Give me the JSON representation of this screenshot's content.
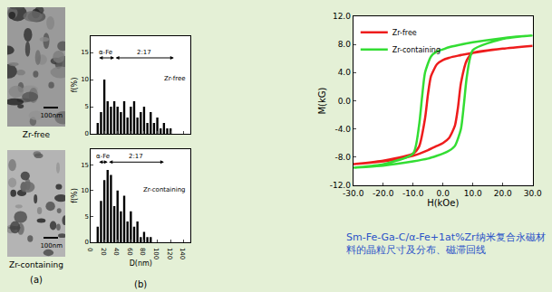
{
  "figure_a": {
    "label": "(a)",
    "images": [
      {
        "label": "Zr-free",
        "scale_bar": "100nm"
      },
      {
        "label": "Zr-containing",
        "scale_bar": "100nm"
      }
    ]
  },
  "chart_data": [
    {
      "type": "bar",
      "label": "Zr-free",
      "color": "#000000",
      "x": [
        10,
        15,
        20,
        25,
        30,
        35,
        40,
        45,
        50,
        55,
        60,
        65,
        70,
        75,
        80,
        85,
        90,
        95,
        100,
        105,
        110,
        115,
        120
      ],
      "values": [
        2,
        4,
        10,
        6,
        5,
        6,
        5,
        4,
        6,
        3,
        5,
        6,
        3,
        4,
        5,
        2,
        4,
        2,
        3,
        1,
        2,
        1,
        1
      ],
      "xlim": [
        0,
        150
      ],
      "xticks": [
        0,
        20,
        40,
        60,
        80,
        100,
        120,
        140
      ],
      "ylim": [
        0,
        18
      ],
      "yticks": [
        0,
        5,
        10,
        15
      ],
      "y_label": "f(%)",
      "tick_labels": "y",
      "grid": false,
      "annotations": [
        {
          "text": "α-Fe",
          "x": [
            10,
            35
          ],
          "y": 14
        },
        {
          "text": "2:17",
          "x": [
            35,
            125
          ],
          "y": 14
        }
      ]
    },
    {
      "type": "bar",
      "label": "Zr-containing",
      "panel_label": "(b)",
      "color": "#000000",
      "x": [
        10,
        15,
        20,
        25,
        30,
        35,
        40,
        45,
        50,
        55,
        60,
        65,
        70,
        75,
        80,
        85,
        90
      ],
      "values": [
        3,
        8,
        12,
        14,
        13,
        7,
        10,
        6,
        9,
        4,
        6,
        3,
        4,
        1,
        2,
        1,
        1
      ],
      "xlim": [
        0,
        150
      ],
      "xticks": [
        0,
        20,
        40,
        60,
        80,
        100,
        120,
        140
      ],
      "ylim": [
        0,
        18
      ],
      "yticks": [
        0,
        5,
        10,
        15
      ],
      "x_label": "D(nm)",
      "y_label": "f(%)",
      "grid": false,
      "annotations": [
        {
          "text": "α-Fe",
          "x": [
            10,
            25
          ],
          "y": 15.5
        },
        {
          "text": "2:17",
          "x": [
            25,
            110
          ],
          "y": 15.5
        }
      ]
    },
    {
      "type": "line",
      "x_label": "H(kOe)",
      "y_label": "M(kG)",
      "legend": "upper left",
      "grid": false,
      "xlim": [
        -30,
        30
      ],
      "xticks": [
        {
          "value": -30,
          "label": "-30.0"
        },
        {
          "value": -20,
          "label": "-20.0"
        },
        {
          "value": -10,
          "label": "-10.0"
        },
        {
          "value": 0,
          "label": "0.0"
        },
        {
          "value": 10,
          "label": "10.0"
        },
        {
          "value": 20,
          "label": "20.0"
        },
        {
          "value": 30,
          "label": "30.0"
        }
      ],
      "ylim": [
        -12,
        12
      ],
      "yticks": [
        {
          "value": -12,
          "label": "-12.0"
        },
        {
          "value": -8,
          "label": "-8.0"
        },
        {
          "value": -4,
          "label": "-4.0"
        },
        {
          "value": 0,
          "label": "0.0"
        },
        {
          "value": 4,
          "label": "4.0"
        },
        {
          "value": 8,
          "label": "8.0"
        },
        {
          "value": 12,
          "label": "12.0"
        }
      ],
      "series": [
        {
          "name": "Zr-free",
          "color": "#ee1c1c",
          "x": [
            30,
            20,
            10,
            5,
            2,
            0,
            -2,
            -4,
            -5,
            -6,
            -8,
            -10,
            -20,
            -30,
            -20,
            -10,
            -5,
            -2,
            0,
            2,
            4,
            5,
            6,
            8,
            10,
            20,
            30
          ],
          "values": [
            7.8,
            7.4,
            6.8,
            6.4,
            6.1,
            5.8,
            5.2,
            3.5,
            1.0,
            -2.5,
            -6.5,
            -7.5,
            -8.5,
            -9.0,
            -8.6,
            -7.8,
            -7.0,
            -6.4,
            -6.0,
            -5.3,
            -3.5,
            -1.0,
            2.5,
            5.8,
            6.8,
            7.4,
            7.8
          ]
        },
        {
          "name": "Zr-containing",
          "color": "#33dd33",
          "x": [
            30,
            20,
            10,
            5,
            2,
            0,
            -2,
            -4,
            -6,
            -7,
            -8,
            -10,
            -20,
            -30,
            -20,
            -10,
            -5,
            -2,
            0,
            2,
            4,
            6,
            7,
            8,
            10,
            20,
            30
          ],
          "values": [
            9.3,
            8.9,
            8.3,
            7.9,
            7.6,
            7.3,
            7.0,
            6.3,
            4.0,
            0.5,
            -3.5,
            -7.5,
            -9.0,
            -9.5,
            -9.2,
            -8.6,
            -8.2,
            -7.8,
            -7.5,
            -7.1,
            -6.4,
            -4.0,
            -0.5,
            3.5,
            7.2,
            8.8,
            9.3
          ]
        }
      ]
    }
  ],
  "caption": "Sm-Fe-Ga-C/α-Fe+1at%Zr纳米复合永磁材料的晶粒尺寸及分布、磁滞回线"
}
